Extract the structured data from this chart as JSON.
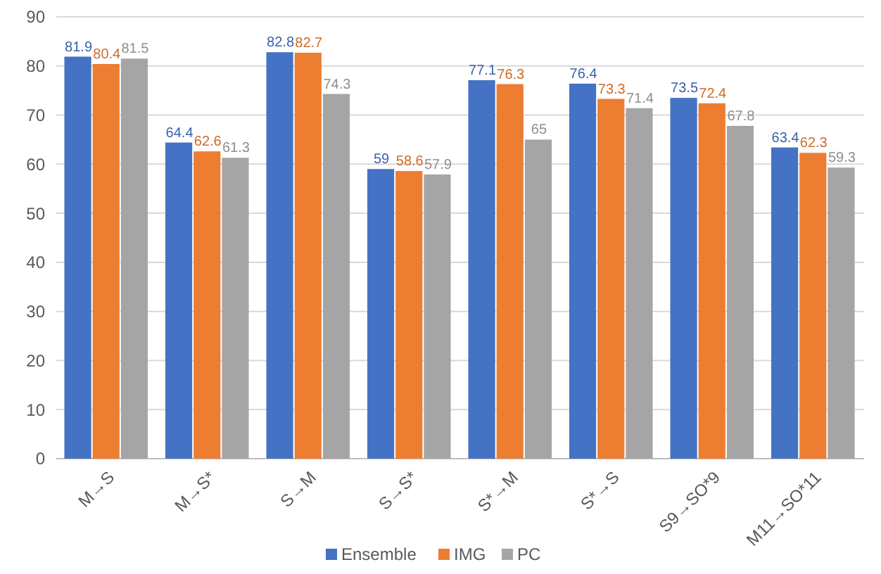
{
  "chart_data": {
    "type": "bar",
    "categories": [
      "M→S",
      "M→S*",
      "S→M",
      "S→S*",
      "S*→M",
      "S*→S",
      "S9→SO*9",
      "M11→SO*11"
    ],
    "series": [
      {
        "name": "Ensemble",
        "color": "#4472c4",
        "values": [
          81.9,
          64.4,
          82.8,
          59,
          77.1,
          76.4,
          73.5,
          63.4
        ]
      },
      {
        "name": "IMG",
        "color": "#ed7d31",
        "values": [
          80.4,
          62.6,
          82.7,
          58.6,
          76.3,
          73.3,
          72.4,
          62.3
        ]
      },
      {
        "name": "PC",
        "color": "#a5a5a5",
        "values": [
          81.5,
          61.3,
          74.3,
          57.9,
          65,
          71.4,
          67.8,
          59.3
        ]
      }
    ],
    "ylim": [
      0,
      90
    ],
    "yticks": [
      0,
      10,
      20,
      30,
      40,
      50,
      60,
      70,
      80,
      90
    ],
    "grid": "y",
    "legend": "bottom",
    "data_labels": true
  }
}
